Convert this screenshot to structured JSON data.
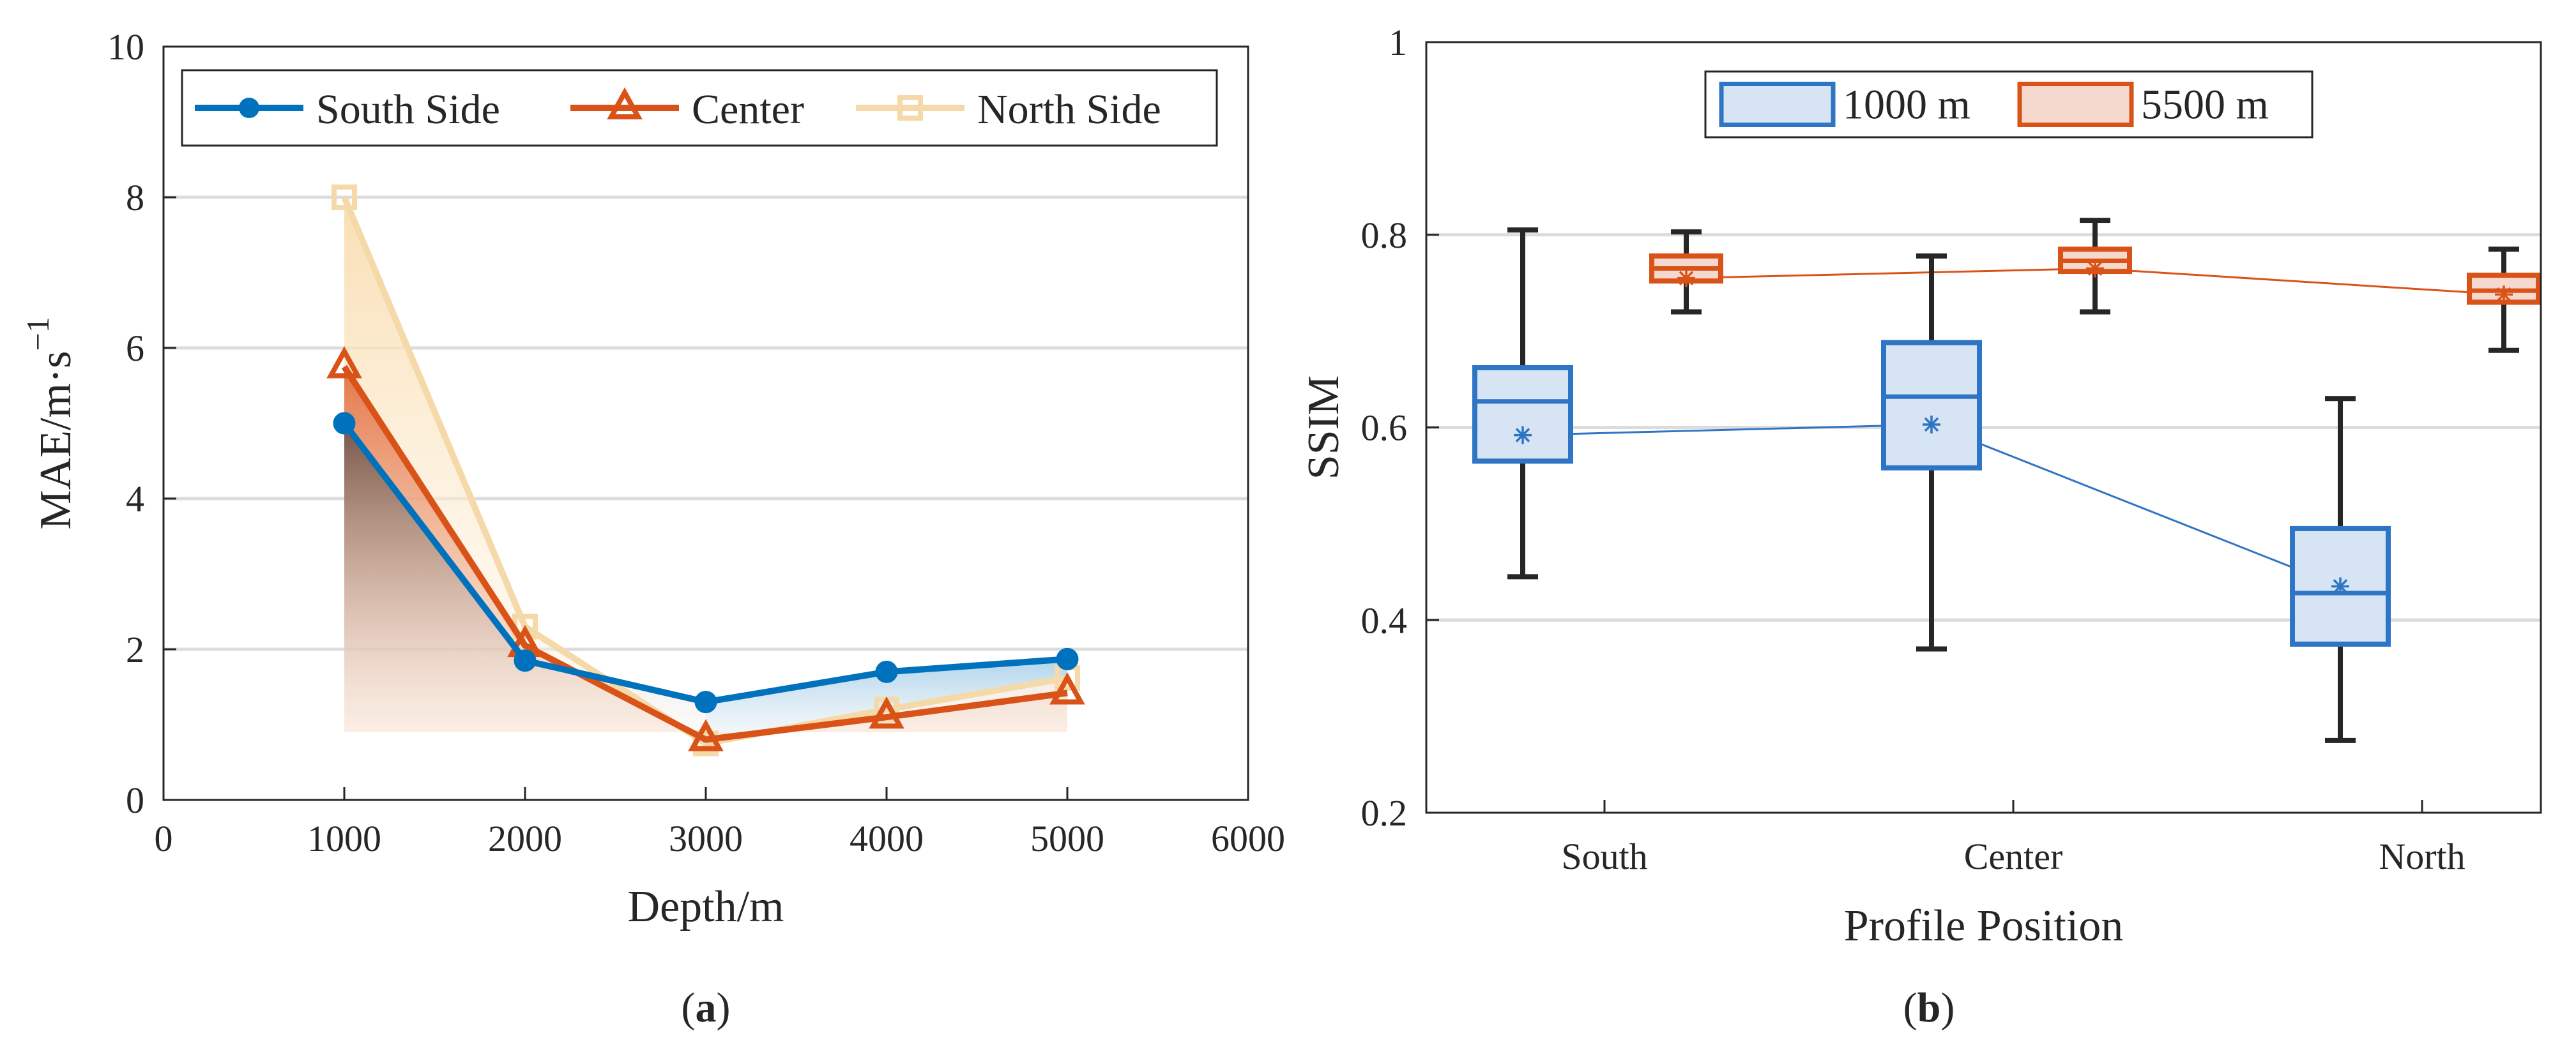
{
  "colors": {
    "south": "#0072BD",
    "center": "#D95319",
    "north": "#F5D9A8",
    "box1000_edge": "#2F75C5",
    "box1000_fill": "#D6E4F4",
    "box5500_edge": "#D95319",
    "box5500_fill": "#F6D9CE",
    "grid": "#DCDCDC",
    "axis": "#262626",
    "whisker": "#262626"
  },
  "chart_data": [
    {
      "type": "line",
      "caption": "(a)",
      "title": "",
      "xlabel": "Depth/m",
      "ylabel": "MAE/m·s",
      "ylabel_sup": "−1",
      "xlim": [
        0,
        6000
      ],
      "ylim": [
        0,
        10
      ],
      "xticks": [
        0,
        1000,
        2000,
        3000,
        4000,
        5000,
        6000
      ],
      "yticks": [
        0,
        2,
        4,
        6,
        8,
        10
      ],
      "grid_y": true,
      "legend_position": "top, horizontal",
      "x": [
        1000,
        2000,
        3000,
        4000,
        5000
      ],
      "series": [
        {
          "name": "South Side",
          "marker": "circle",
          "values": [
            5.0,
            1.85,
            1.3,
            1.7,
            1.87
          ]
        },
        {
          "name": "Center",
          "marker": "triangle",
          "values": [
            5.75,
            2.05,
            0.8,
            1.1,
            1.42
          ]
        },
        {
          "name": "North Side",
          "marker": "square",
          "values": [
            8.0,
            2.3,
            0.75,
            1.2,
            1.62
          ]
        }
      ]
    },
    {
      "type": "box",
      "caption": "(b)",
      "title": "",
      "xlabel": "Profile Position",
      "ylabel": "SSIM",
      "ylim": [
        0.2,
        1
      ],
      "yticks": [
        0.2,
        0.4,
        0.6,
        0.8,
        1
      ],
      "ytick_labels": [
        "0.2",
        "0.4",
        "0.6",
        "0.8",
        "1"
      ],
      "grid_y": true,
      "legend_position": "top, horizontal",
      "categories": [
        "South",
        "Center",
        "North"
      ],
      "series": [
        {
          "name": "1000 m",
          "whisker_low": [
            0.445,
            0.37,
            0.275
          ],
          "q1": [
            0.565,
            0.558,
            0.375
          ],
          "median": [
            0.627,
            0.632,
            0.428
          ],
          "q3": [
            0.662,
            0.688,
            0.495
          ],
          "whisker_high": [
            0.805,
            0.778,
            0.63
          ],
          "mean": [
            0.592,
            0.603,
            0.435
          ]
        },
        {
          "name": "5500 m",
          "whisker_low": [
            0.72,
            0.72,
            0.68
          ],
          "q1": [
            0.752,
            0.762,
            0.73
          ],
          "median": [
            0.765,
            0.773,
            0.742
          ],
          "q3": [
            0.778,
            0.785,
            0.758
          ],
          "whisker_high": [
            0.803,
            0.815,
            0.785
          ],
          "mean": [
            0.755,
            0.765,
            0.738
          ]
        }
      ]
    }
  ]
}
